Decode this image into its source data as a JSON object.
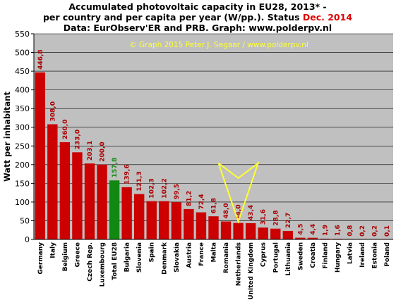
{
  "chart_data": {
    "type": "bar",
    "title": {
      "line1": "Accumulated photovoltaic capacity in EU28, 2013* -",
      "line2_prefix": "per country and per capita per year (W/pp.). Status ",
      "line2_highlight": "Dec. 2014",
      "line3": "Data: EurObserv'ER and PRB. Graph: www.polderpv.nl"
    },
    "ylabel": "Watt per inhabitant",
    "xlabel": "",
    "ylim": [
      0,
      550
    ],
    "yticks": [
      "0",
      "50",
      "100",
      "150",
      "200",
      "250",
      "300",
      "350",
      "400",
      "450",
      "500",
      "550"
    ],
    "grid": "horizontal",
    "watermark": "© Graph 2015 Peter J. Segaar / www.polderpv.nl",
    "colors": {
      "bar": "#cc0000",
      "highlight_bar": "#118811",
      "value_label": "#aa0000",
      "highlight_label": "#118811",
      "plot_bg": "#c0c0c0",
      "watermark": "#ffff33",
      "arrow": "#ffff33"
    },
    "categories": [
      "Germany",
      "Italy",
      "Belgium",
      "Greece",
      "Czech Rep.",
      "Luxembourg",
      "Total EU28",
      "Bulgaria",
      "Slovenia",
      "Spain",
      "Denmark",
      "Slovakia",
      "Austria",
      "France",
      "Malta",
      "Romania",
      "Netherlands",
      "United Kingdom",
      "Cyprus",
      "Portugal",
      "Lithuania",
      "Sweden",
      "Croatia",
      "Finland",
      "Hungary",
      "Latvia",
      "Ireland",
      "Estonia",
      "Poland"
    ],
    "values": [
      446.8,
      308.0,
      260.0,
      233.0,
      203.1,
      200.0,
      157.8,
      139.6,
      121.3,
      102.3,
      102.2,
      99.5,
      81.2,
      72.4,
      61.8,
      48.0,
      44.0,
      43.4,
      31.6,
      28.8,
      22.7,
      4.5,
      4.4,
      1.9,
      1.6,
      0.8,
      0.2,
      0.2,
      0.1
    ],
    "value_labels": [
      "446,8",
      "308,0",
      "260,0",
      "233,0",
      "203,1",
      "200,0",
      "157,8",
      "139,6",
      "121,3",
      "102,3",
      "102,2",
      "99,5",
      "81,2",
      "72,4",
      "61,8",
      "48,0",
      "44,0",
      "43,4",
      "31,6",
      "28,8",
      "22,7",
      "4,5",
      "4,4",
      "1,9",
      "1,6",
      "0,8",
      "0,2",
      "0,2",
      "0,1"
    ],
    "highlight_index": 6,
    "arrow_points_to": "Netherlands"
  }
}
